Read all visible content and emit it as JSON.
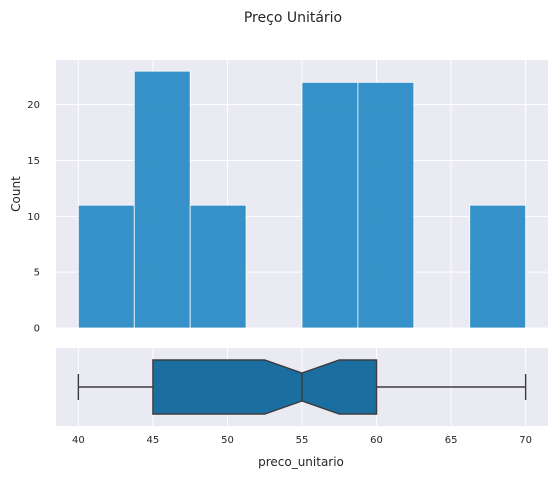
{
  "chart_data": {
    "title": "Preço Unitário",
    "histogram": {
      "type": "bar",
      "ylabel": "Count",
      "xlim": [
        38.5,
        71.5
      ],
      "ylim": [
        0,
        24
      ],
      "yticks": [
        "0",
        "5",
        "10",
        "15",
        "20"
      ],
      "bin_width": 3.75,
      "bin_start": 40,
      "counts": [
        11,
        23,
        11,
        0,
        22,
        22,
        0,
        11
      ],
      "grid": true
    },
    "boxplot": {
      "type": "boxplot",
      "xlabel": "preco_unitario",
      "notched": true,
      "min": 40,
      "q1": 45,
      "median": 55,
      "q3": 60,
      "max": 70,
      "notch_low": 52.5,
      "notch_high": 57.5,
      "xticks": [
        "40",
        "45",
        "50",
        "55",
        "60",
        "65",
        "70"
      ],
      "grid": true
    },
    "colors": {
      "bar": "#2b8cc4",
      "box": "#1a6fa0",
      "panel_bg": "#eaeaf2",
      "grid": "#ffffff",
      "line": "#3d3d3d"
    }
  }
}
